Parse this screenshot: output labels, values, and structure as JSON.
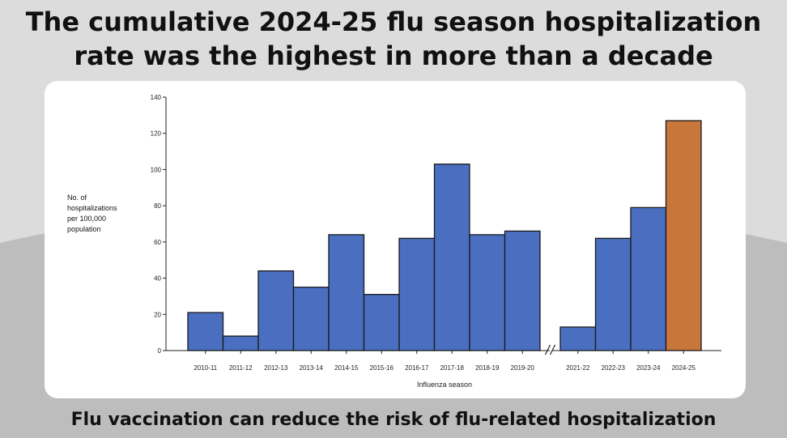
{
  "headline": {
    "line1": "The cumulative 2024-25 flu season hospitalization",
    "line2": "rate was the highest in more than a decade"
  },
  "footer": {
    "text": "Flu vaccination can reduce the risk of flu-related hospitalization"
  },
  "colors": {
    "bar": "#4a6fc0",
    "highlight": "#c8763a",
    "bar_outline": "#1a1a1a"
  },
  "chart_data": {
    "type": "bar",
    "title": "",
    "xlabel": "Influenza season",
    "ylabel": [
      "No. of",
      "hospitalizations",
      "per 100,000",
      "population"
    ],
    "ylim": [
      0,
      140
    ],
    "yticks": [
      0,
      20,
      40,
      60,
      80,
      100,
      120,
      140
    ],
    "grid": false,
    "legend": "none",
    "axis_break_after": "2019-20",
    "groups": [
      {
        "categories": [
          "2010-11",
          "2011-12",
          "2012-13",
          "2013-14",
          "2014-15",
          "2015-16",
          "2016-17",
          "2017-18",
          "2018-19",
          "2019-20"
        ],
        "values": [
          21,
          8,
          44,
          35,
          64,
          31,
          62,
          103,
          64,
          66
        ]
      },
      {
        "categories": [
          "2021-22",
          "2022-23",
          "2023-24",
          "2024-25"
        ],
        "values": [
          13,
          62,
          79,
          127
        ]
      }
    ],
    "highlight_category": "2024-25"
  }
}
